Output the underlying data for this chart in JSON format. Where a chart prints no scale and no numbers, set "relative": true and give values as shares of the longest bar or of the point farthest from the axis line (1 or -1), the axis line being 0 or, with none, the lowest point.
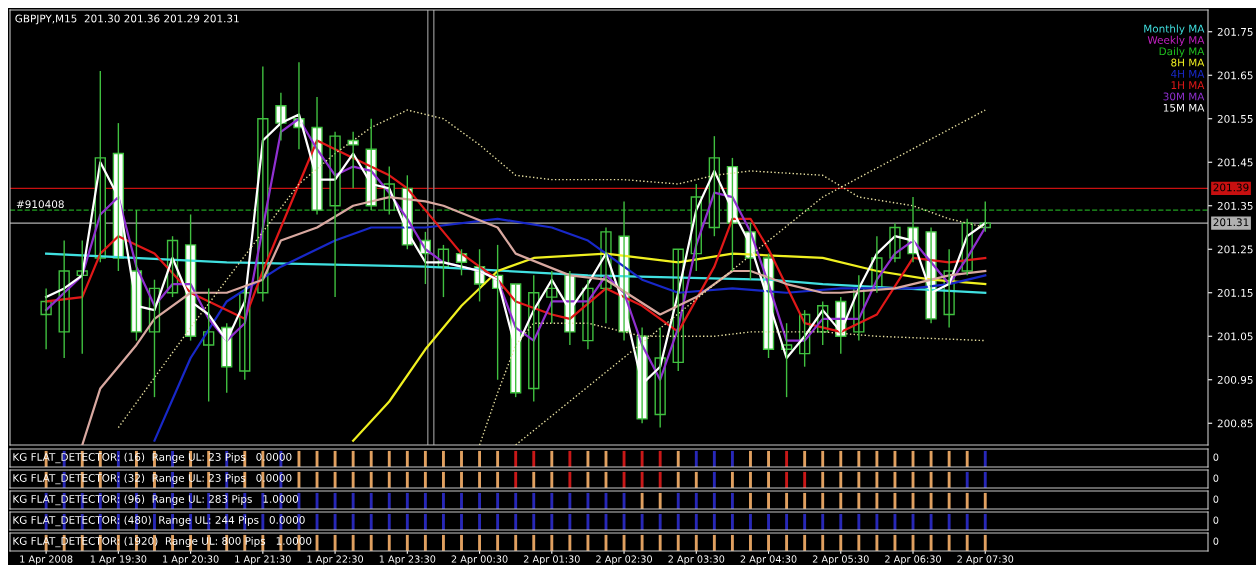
{
  "chart_data": [
    {
      "type": "candlestick",
      "title": "GBPJPY,M15  201.30 201.36 201.29 201.31",
      "tick_labels": "y",
      "legend": "top right",
      "annotations": [
        {
          "text": "#910408",
          "x": "2008-04-01T18:05",
          "y": 201.34
        }
      ],
      "xlim": [
        "2008-04-01T18:00",
        "2008-04-02T10:35"
      ],
      "ylim": [
        200.8,
        201.8
      ],
      "yticks": [
        200.85,
        200.95,
        201.05,
        201.15,
        201.25,
        201.35,
        201.45,
        201.55,
        201.65,
        201.75
      ],
      "x": [
        "2008-04-01T18:30",
        "2008-04-01T18:45",
        "2008-04-01T19:00",
        "2008-04-01T19:15",
        "2008-04-01T19:30",
        "2008-04-01T19:45",
        "2008-04-01T20:00",
        "2008-04-01T20:15",
        "2008-04-01T20:30",
        "2008-04-01T20:45",
        "2008-04-01T21:00",
        "2008-04-01T21:15",
        "2008-04-01T21:30",
        "2008-04-01T21:45",
        "2008-04-01T22:00",
        "2008-04-01T22:15",
        "2008-04-01T22:30",
        "2008-04-01T22:45",
        "2008-04-01T23:00",
        "2008-04-01T23:15",
        "2008-04-01T23:30",
        "2008-04-01T23:45",
        "2008-04-02T00:00",
        "2008-04-02T00:15",
        "2008-04-02T00:30",
        "2008-04-02T00:45",
        "2008-04-02T01:00",
        "2008-04-02T01:15",
        "2008-04-02T01:30",
        "2008-04-02T01:45",
        "2008-04-02T02:00",
        "2008-04-02T02:15",
        "2008-04-02T02:30",
        "2008-04-02T02:45",
        "2008-04-02T03:00",
        "2008-04-02T03:15",
        "2008-04-02T03:30",
        "2008-04-02T03:45",
        "2008-04-02T04:00",
        "2008-04-02T04:15",
        "2008-04-02T04:30",
        "2008-04-02T04:45",
        "2008-04-02T05:00",
        "2008-04-02T05:15",
        "2008-04-02T05:30",
        "2008-04-02T05:45",
        "2008-04-02T06:00",
        "2008-04-02T06:15",
        "2008-04-02T06:30",
        "2008-04-02T06:45",
        "2008-04-02T07:00",
        "2008-04-02T07:15",
        "2008-04-02T07:30"
      ],
      "ohlc": [
        [
          201.1,
          201.16,
          201.02,
          201.13
        ],
        [
          201.06,
          201.27,
          201.0,
          201.2
        ],
        [
          201.19,
          201.27,
          201.01,
          201.2
        ],
        [
          201.23,
          201.66,
          201.22,
          201.46
        ],
        [
          201.47,
          201.54,
          201.2,
          201.23
        ],
        [
          201.2,
          201.34,
          201.04,
          201.06
        ],
        [
          201.06,
          201.18,
          200.91,
          201.16
        ],
        [
          201.15,
          201.28,
          201.14,
          201.27
        ],
        [
          201.26,
          201.33,
          201.04,
          201.05
        ],
        [
          201.03,
          201.16,
          200.9,
          201.06
        ],
        [
          201.07,
          201.08,
          200.92,
          200.98
        ],
        [
          200.97,
          201.16,
          200.95,
          201.15
        ],
        [
          201.15,
          201.67,
          201.13,
          201.55
        ],
        [
          201.58,
          201.61,
          201.5,
          201.54
        ],
        [
          201.55,
          201.68,
          201.48,
          201.53
        ],
        [
          201.53,
          201.6,
          201.33,
          201.34
        ],
        [
          201.35,
          201.52,
          201.14,
          201.51
        ],
        [
          201.5,
          201.52,
          201.39,
          201.49
        ],
        [
          201.48,
          201.55,
          201.34,
          201.35
        ],
        [
          201.34,
          201.44,
          201.33,
          201.4
        ],
        [
          201.39,
          201.42,
          201.25,
          201.26
        ],
        [
          201.27,
          201.29,
          201.17,
          201.24
        ],
        [
          201.21,
          201.26,
          201.14,
          201.25
        ],
        [
          201.24,
          201.25,
          201.19,
          201.22
        ],
        [
          201.21,
          201.25,
          201.13,
          201.17
        ],
        [
          201.19,
          201.26,
          200.95,
          201.16
        ],
        [
          201.17,
          201.17,
          200.91,
          200.92
        ],
        [
          200.93,
          201.19,
          200.9,
          201.15
        ],
        [
          201.14,
          201.2,
          201.08,
          201.16
        ],
        [
          201.19,
          201.2,
          201.03,
          201.06
        ],
        [
          201.04,
          201.18,
          201.02,
          201.16
        ],
        [
          201.16,
          201.3,
          201.08,
          201.29
        ],
        [
          201.28,
          201.36,
          201.04,
          201.06
        ],
        [
          201.05,
          201.07,
          200.85,
          200.86
        ],
        [
          200.87,
          201.07,
          200.84,
          201.0
        ],
        [
          200.99,
          201.25,
          200.97,
          201.25
        ],
        [
          201.24,
          201.4,
          201.2,
          201.37
        ],
        [
          201.3,
          201.51,
          201.28,
          201.46
        ],
        [
          201.44,
          201.46,
          201.2,
          201.31
        ],
        [
          201.29,
          201.31,
          201.18,
          201.23
        ],
        [
          201.23,
          201.24,
          201.0,
          201.02
        ],
        [
          201.02,
          201.08,
          200.91,
          201.03
        ],
        [
          201.01,
          201.11,
          200.98,
          201.1
        ],
        [
          201.06,
          201.13,
          201.03,
          201.12
        ],
        [
          201.13,
          201.14,
          201.01,
          201.05
        ],
        [
          201.06,
          201.19,
          201.04,
          201.16
        ],
        [
          201.16,
          201.28,
          201.15,
          201.23
        ],
        [
          201.23,
          201.31,
          201.22,
          201.3
        ],
        [
          201.3,
          201.37,
          201.22,
          201.24
        ],
        [
          201.29,
          201.3,
          201.08,
          201.09
        ],
        [
          201.1,
          201.25,
          201.07,
          201.2
        ],
        [
          201.2,
          201.32,
          201.19,
          201.31
        ],
        [
          201.3,
          201.36,
          201.29,
          201.31
        ]
      ],
      "color": "#40c040",
      "colors": [
        "#000000",
        "#000000",
        "#000000",
        "#000000",
        "#ffffff",
        "#ffffff",
        "#000000",
        "#000000",
        "#ffffff",
        "#000000",
        "#ffffff",
        "#000000",
        "#000000",
        "#ffffff",
        "#ffffff",
        "#ffffff",
        "#000000",
        "#ffffff",
        "#ffffff",
        "#000000",
        "#ffffff",
        "#ffffff",
        "#000000",
        "#ffffff",
        "#ffffff",
        "#ffffff",
        "#ffffff",
        "#000000",
        "#000000",
        "#ffffff",
        "#000000",
        "#000000",
        "#ffffff",
        "#ffffff",
        "#000000",
        "#000000",
        "#000000",
        "#000000",
        "#ffffff",
        "#ffffff",
        "#ffffff",
        "#000000",
        "#000000",
        "#000000",
        "#ffffff",
        "#000000",
        "#000000",
        "#000000",
        "#ffffff",
        "#ffffff",
        "#000000",
        "#000000",
        "#000000"
      ],
      "series": [
        {
          "type": "line",
          "name": "Monthly MA",
          "color": "#40e0e0",
          "x": [
            "2008-04-01T18:30",
            "2008-04-01T21:00",
            "2008-04-01T23:45",
            "2008-04-02T02:00",
            "2008-04-02T04:30",
            "2008-04-02T05:15",
            "2008-04-02T07:30"
          ],
          "values": [
            201.24,
            201.22,
            201.21,
            201.19,
            201.18,
            201.17,
            201.15
          ]
        },
        {
          "type": "line",
          "name": "Weekly MA",
          "color": "#c020c0",
          "values": [
            null,
            null,
            null,
            null,
            null,
            null,
            null,
            null,
            null,
            null,
            null,
            null,
            null,
            null,
            null,
            null,
            null,
            null,
            null,
            null,
            null,
            null,
            null,
            null,
            null,
            null,
            null,
            null,
            null,
            null,
            null,
            null,
            null,
            null,
            null,
            null,
            null,
            null,
            null,
            null,
            null,
            null,
            null,
            null,
            null,
            null,
            null,
            null,
            null,
            null,
            null,
            null,
            null
          ]
        },
        {
          "type": "line",
          "name": "Daily MA",
          "color": "#20c020",
          "values": [
            null,
            null,
            null,
            null,
            null,
            null,
            null,
            null,
            null,
            null,
            null,
            null,
            null,
            null,
            null,
            null,
            null,
            null,
            null,
            null,
            null,
            null,
            null,
            null,
            null,
            null,
            null,
            null,
            null,
            null,
            null,
            null,
            null,
            null,
            null,
            null,
            null,
            null,
            null,
            null,
            null,
            null,
            null,
            null,
            null,
            null,
            null,
            null,
            null,
            null,
            null,
            null,
            null
          ]
        },
        {
          "type": "line",
          "name": "8H MA",
          "color": "#f0f020",
          "x": [
            "2008-04-01T22:45",
            "2008-04-01T23:15",
            "2008-04-01T23:45",
            "2008-04-02T00:15",
            "2008-04-02T00:45",
            "2008-04-02T01:15",
            "2008-04-02T02:15",
            "2008-04-02T03:15",
            "2008-04-02T04:00",
            "2008-04-02T05:15",
            "2008-04-02T06:00",
            "2008-04-02T06:45",
            "2008-04-02T07:30"
          ],
          "values": [
            200.81,
            200.9,
            201.02,
            201.12,
            201.2,
            201.23,
            201.24,
            201.22,
            201.24,
            201.23,
            201.2,
            201.18,
            201.17
          ]
        },
        {
          "type": "line",
          "name": "4H MA",
          "color": "#1828c8",
          "x": [
            "2008-04-01T20:00",
            "2008-04-01T20:30",
            "2008-04-01T21:00",
            "2008-04-01T21:45",
            "2008-04-01T22:30",
            "2008-04-01T23:00",
            "2008-04-01T23:45",
            "2008-04-02T00:45",
            "2008-04-02T01:30",
            "2008-04-02T02:00",
            "2008-04-02T02:45",
            "2008-04-02T03:15",
            "2008-04-02T04:00",
            "2008-04-02T04:45",
            "2008-04-02T05:30",
            "2008-04-02T06:30",
            "2008-04-02T07:00",
            "2008-04-02T07:30"
          ],
          "values": [
            200.81,
            201.0,
            201.13,
            201.21,
            201.27,
            201.3,
            201.3,
            201.32,
            201.3,
            201.27,
            201.18,
            201.15,
            201.16,
            201.15,
            201.16,
            201.16,
            201.17,
            201.19
          ]
        },
        {
          "type": "line",
          "name": "1H MA",
          "color": "#e01818",
          "x": [
            "2008-04-01T18:30",
            "2008-04-01T19:00",
            "2008-04-01T19:15",
            "2008-04-01T19:30",
            "2008-04-01T19:45",
            "2008-04-01T20:00",
            "2008-04-01T20:30",
            "2008-04-01T21:15",
            "2008-04-01T21:30",
            "2008-04-01T22:00",
            "2008-04-01T22:15",
            "2008-04-01T22:45",
            "2008-04-01T23:15",
            "2008-04-01T23:30",
            "2008-04-01T23:45",
            "2008-04-02T00:15",
            "2008-04-02T00:45",
            "2008-04-02T01:00",
            "2008-04-02T01:30",
            "2008-04-02T01:45",
            "2008-04-02T02:15",
            "2008-04-02T02:45",
            "2008-04-02T03:15",
            "2008-04-02T03:45",
            "2008-04-02T04:00",
            "2008-04-02T04:15",
            "2008-04-02T04:30",
            "2008-04-02T05:00",
            "2008-04-02T05:30",
            "2008-04-02T06:00",
            "2008-04-02T06:30",
            "2008-04-02T07:00",
            "2008-04-02T07:30"
          ],
          "values": [
            201.13,
            201.14,
            201.24,
            201.28,
            201.26,
            201.24,
            201.15,
            201.09,
            201.2,
            201.4,
            201.5,
            201.46,
            201.42,
            201.39,
            201.34,
            201.24,
            201.18,
            201.13,
            201.1,
            201.09,
            201.16,
            201.12,
            201.06,
            201.21,
            201.32,
            201.32,
            201.25,
            201.08,
            201.06,
            201.1,
            201.23,
            201.22,
            201.23
          ]
        },
        {
          "type": "line",
          "name": "30M MA",
          "color": "#9030d0",
          "values": [
            201.11,
            201.15,
            201.19,
            201.33,
            201.37,
            201.21,
            201.12,
            201.17,
            201.17,
            201.09,
            201.04,
            201.08,
            201.3,
            201.52,
            201.55,
            201.48,
            201.42,
            201.44,
            201.43,
            201.38,
            201.32,
            201.25,
            201.22,
            201.21,
            201.2,
            201.18,
            201.07,
            201.04,
            201.13,
            201.13,
            201.13,
            201.19,
            201.15,
            201.03,
            200.95,
            201.07,
            201.26,
            201.38,
            201.37,
            201.29,
            201.17,
            201.04,
            201.04,
            201.09,
            201.09,
            201.09,
            201.18,
            201.24,
            201.27,
            201.22,
            201.17,
            201.23,
            201.3
          ]
        },
        {
          "type": "line",
          "name": "15M MA",
          "color": "#ffffff",
          "values": [
            201.14,
            201.16,
            201.19,
            201.45,
            201.37,
            201.12,
            201.11,
            201.23,
            201.13,
            201.1,
            201.04,
            201.13,
            201.5,
            201.54,
            201.56,
            201.41,
            201.41,
            201.47,
            201.4,
            201.39,
            201.29,
            201.22,
            201.22,
            201.21,
            201.2,
            201.18,
            201.02,
            201.11,
            201.18,
            201.11,
            201.17,
            201.24,
            201.12,
            200.94,
            200.98,
            201.15,
            201.34,
            201.43,
            201.34,
            201.26,
            201.13,
            201.0,
            201.05,
            201.11,
            201.06,
            201.16,
            201.24,
            201.28,
            201.27,
            201.15,
            201.17,
            201.28,
            201.31
          ]
        },
        {
          "type": "line",
          "color": "#d8a8a0",
          "x": [
            "2008-04-01T19:00",
            "2008-04-01T19:15",
            "2008-04-01T19:45",
            "2008-04-01T20:00",
            "2008-04-01T20:30",
            "2008-04-01T21:00",
            "2008-04-01T21:30",
            "2008-04-01T21:45",
            "2008-04-01T22:15",
            "2008-04-01T22:45",
            "2008-04-01T23:15",
            "2008-04-01T23:45",
            "2008-04-02T00:00",
            "2008-04-02T00:45",
            "2008-04-02T01:00",
            "2008-04-02T01:45",
            "2008-04-02T02:15",
            "2008-04-02T03:00",
            "2008-04-02T03:30",
            "2008-04-02T04:00",
            "2008-04-02T04:15",
            "2008-04-02T04:45",
            "2008-04-02T05:15",
            "2008-04-02T05:30",
            "2008-04-02T06:15",
            "2008-04-02T07:00",
            "2008-04-02T07:30"
          ],
          "values": [
            200.8,
            200.93,
            201.03,
            201.09,
            201.15,
            201.15,
            201.18,
            201.27,
            201.3,
            201.35,
            201.37,
            201.36,
            201.35,
            201.3,
            201.24,
            201.19,
            201.18,
            201.1,
            201.14,
            201.2,
            201.2,
            201.17,
            201.15,
            201.15,
            201.16,
            201.19,
            201.2
          ]
        },
        {
          "type": "line",
          "color": "#e8e0a0",
          "line_style": "dotted",
          "x": [
            "2008-04-01T19:30",
            "2008-04-01T20:30",
            "2008-04-01T21:30",
            "2008-04-01T22:00",
            "2008-04-01T22:30",
            "2008-04-01T23:00",
            "2008-04-01T23:30",
            "2008-04-02T00:00",
            "2008-04-02T00:30",
            "2008-04-02T01:00",
            "2008-04-02T01:30",
            "2008-04-02T02:30",
            "2008-04-02T03:15",
            "2008-04-02T03:45",
            "2008-04-02T04:15",
            "2008-04-02T05:15",
            "2008-04-02T05:45",
            "2008-04-02T06:30",
            "2008-04-02T07:00",
            "2008-04-02T07:30"
          ],
          "values": [
            200.84,
            201.07,
            201.29,
            201.4,
            201.47,
            201.53,
            201.57,
            201.55,
            201.49,
            201.42,
            201.41,
            201.41,
            201.4,
            201.42,
            201.43,
            201.42,
            201.37,
            201.35,
            201.32,
            201.3
          ]
        },
        {
          "type": "line",
          "color": "#e8e0a0",
          "line_style": "dotted",
          "x": [
            "2008-04-02T00:30",
            "2008-04-02T00:45",
            "2008-04-02T01:00",
            "2008-04-02T01:15",
            "2008-04-02T02:00",
            "2008-04-02T02:45",
            "2008-04-02T03:45",
            "2008-04-02T04:15",
            "2008-04-02T05:15",
            "2008-04-02T06:00",
            "2008-04-02T07:30"
          ],
          "values": [
            200.8,
            200.92,
            201.03,
            201.08,
            201.08,
            201.05,
            201.05,
            201.06,
            201.06,
            201.05,
            201.04
          ]
        },
        {
          "type": "line",
          "color": "#e8e0a0",
          "line_style": "dotted",
          "x": [
            "2008-04-02T01:00",
            "2008-04-02T05:15",
            "2008-04-02T07:30"
          ],
          "values": [
            200.8,
            201.37,
            201.57
          ]
        }
      ],
      "ref_lines": [
        {
          "axis": "y",
          "value": 201.39,
          "label": "201.39",
          "color": "#c81010"
        },
        {
          "axis": "y",
          "value": 201.31,
          "label": "201.31",
          "color": "#b0b0b0"
        },
        {
          "axis": "y",
          "value": 201.34,
          "color": "#20a020",
          "line_style": "dashed"
        },
        {
          "axis": "x",
          "value": "2008-04-01T23:47",
          "color": "#808080"
        },
        {
          "axis": "x",
          "value": "2008-04-01T23:52",
          "color": "#808080"
        }
      ]
    },
    {
      "type": "bar",
      "relative": true,
      "tick_labels": false,
      "title": "KG FLAT_DETECTOR: (16)  Range UL: 23 Pips   0.0000",
      "annotations": [
        "0"
      ],
      "xlim": [
        "2008-04-01T18:00",
        "2008-04-02T10:35"
      ],
      "x": [
        "2008-04-01T18:30",
        "2008-04-01T18:45",
        "2008-04-01T19:00",
        "2008-04-01T19:15",
        "2008-04-01T19:30",
        "2008-04-01T19:45",
        "2008-04-01T20:00",
        "2008-04-01T20:15",
        "2008-04-01T20:30",
        "2008-04-01T20:45",
        "2008-04-01T21:00",
        "2008-04-01T21:15",
        "2008-04-01T21:30",
        "2008-04-01T21:45",
        "2008-04-01T22:00",
        "2008-04-01T22:15",
        "2008-04-01T22:30",
        "2008-04-01T22:45",
        "2008-04-01T23:00",
        "2008-04-01T23:15",
        "2008-04-01T23:30",
        "2008-04-01T23:45",
        "2008-04-02T00:00",
        "2008-04-02T00:15",
        "2008-04-02T00:30",
        "2008-04-02T00:45",
        "2008-04-02T01:00",
        "2008-04-02T01:15",
        "2008-04-02T01:30",
        "2008-04-02T01:45",
        "2008-04-02T02:00",
        "2008-04-02T02:15",
        "2008-04-02T02:30",
        "2008-04-02T02:45",
        "2008-04-02T03:00",
        "2008-04-02T03:15",
        "2008-04-02T03:30",
        "2008-04-02T03:45",
        "2008-04-02T04:00",
        "2008-04-02T04:15",
        "2008-04-02T04:30",
        "2008-04-02T04:45",
        "2008-04-02T05:00",
        "2008-04-02T05:15",
        "2008-04-02T05:30",
        "2008-04-02T05:45",
        "2008-04-02T06:00",
        "2008-04-02T06:15",
        "2008-04-02T06:30",
        "2008-04-02T06:45",
        "2008-04-02T07:00",
        "2008-04-02T07:15",
        "2008-04-02T07:30"
      ],
      "values": [
        1,
        1,
        1,
        1,
        1,
        1,
        1,
        1,
        1,
        1,
        1,
        1,
        1,
        1,
        1,
        1,
        1,
        1,
        1,
        1,
        1,
        1,
        1,
        1,
        1,
        1,
        1,
        1,
        1,
        1,
        1,
        1,
        1,
        1,
        1,
        1,
        1,
        1,
        1,
        1,
        1,
        1,
        1,
        1,
        1,
        1,
        1,
        1,
        1,
        1,
        1,
        1,
        1
      ],
      "colors": [
        "#e0a060",
        "#2828b8",
        "#e0a060",
        "#e0a060",
        "#2828b8",
        "#e0a060",
        "#e0a060",
        "#2828b8",
        "#e0a060",
        "#e0a060",
        "#2828b8",
        "#e0a060",
        "#e0a060",
        "#2828b8",
        "#e0a060",
        "#e0a060",
        "#e0a060",
        "#e0a060",
        "#e0a060",
        "#e0a060",
        "#e0a060",
        "#e0a060",
        "#e0a060",
        "#e0a060",
        "#e0a060",
        "#e0a060",
        "#c81818",
        "#c81818",
        "#e0a060",
        "#c81818",
        "#e0a060",
        "#e0a060",
        "#c81818",
        "#c81818",
        "#c81818",
        "#e0a060",
        "#2828b8",
        "#2828b8",
        "#2828b8",
        "#e0a060",
        "#e0a060",
        "#c81818",
        "#e0a060",
        "#e0a060",
        "#e0a060",
        "#e0a060",
        "#e0a060",
        "#e0a060",
        "#e0a060",
        "#e0a060",
        "#e0a060",
        "#e0a060",
        "#2828b8"
      ]
    },
    {
      "type": "bar",
      "relative": true,
      "tick_labels": false,
      "title": "KG FLAT_DETECTOR: (32)  Range UL: 23 Pips   0.0000",
      "annotations": [
        "0"
      ],
      "xlim": [
        "2008-04-01T18:00",
        "2008-04-02T10:35"
      ],
      "x": [
        "2008-04-01T18:30",
        "2008-04-01T18:45",
        "2008-04-01T19:00",
        "2008-04-01T19:15",
        "2008-04-01T19:30",
        "2008-04-01T19:45",
        "2008-04-01T20:00",
        "2008-04-01T20:15",
        "2008-04-01T20:30",
        "2008-04-01T20:45",
        "2008-04-01T21:00",
        "2008-04-01T21:15",
        "2008-04-01T21:30",
        "2008-04-01T21:45",
        "2008-04-01T22:00",
        "2008-04-01T22:15",
        "2008-04-01T22:30",
        "2008-04-01T22:45",
        "2008-04-01T23:00",
        "2008-04-01T23:15",
        "2008-04-01T23:30",
        "2008-04-01T23:45",
        "2008-04-02T00:00",
        "2008-04-02T00:15",
        "2008-04-02T00:30",
        "2008-04-02T00:45",
        "2008-04-02T01:00",
        "2008-04-02T01:15",
        "2008-04-02T01:30",
        "2008-04-02T01:45",
        "2008-04-02T02:00",
        "2008-04-02T02:15",
        "2008-04-02T02:30",
        "2008-04-02T02:45",
        "2008-04-02T03:00",
        "2008-04-02T03:15",
        "2008-04-02T03:30",
        "2008-04-02T03:45",
        "2008-04-02T04:00",
        "2008-04-02T04:15",
        "2008-04-02T04:30",
        "2008-04-02T04:45",
        "2008-04-02T05:00",
        "2008-04-02T05:15",
        "2008-04-02T05:30",
        "2008-04-02T05:45",
        "2008-04-02T06:00",
        "2008-04-02T06:15",
        "2008-04-02T06:30",
        "2008-04-02T06:45",
        "2008-04-02T07:00",
        "2008-04-02T07:15",
        "2008-04-02T07:30"
      ],
      "values": [
        1,
        1,
        1,
        1,
        1,
        1,
        1,
        1,
        1,
        1,
        1,
        1,
        1,
        1,
        1,
        1,
        1,
        1,
        1,
        1,
        1,
        1,
        1,
        1,
        1,
        1,
        1,
        1,
        1,
        1,
        1,
        1,
        1,
        1,
        1,
        1,
        1,
        1,
        1,
        1,
        1,
        1,
        1,
        1,
        1,
        1,
        1,
        1,
        1,
        1,
        1,
        1,
        1
      ],
      "colors": [
        "#e0a060",
        "#2828b8",
        "#e0a060",
        "#e0a060",
        "#2828b8",
        "#e0a060",
        "#e0a060",
        "#2828b8",
        "#e0a060",
        "#e0a060",
        "#2828b8",
        "#e0a060",
        "#e0a060",
        "#2828b8",
        "#e0a060",
        "#e0a060",
        "#e0a060",
        "#e0a060",
        "#e0a060",
        "#e0a060",
        "#e0a060",
        "#e0a060",
        "#e0a060",
        "#e0a060",
        "#e0a060",
        "#e0a060",
        "#c81818",
        "#e0a060",
        "#e0a060",
        "#c81818",
        "#e0a060",
        "#e0a060",
        "#c81818",
        "#c81818",
        "#c81818",
        "#e0a060",
        "#e0a060",
        "#2828b8",
        "#e0a060",
        "#e0a060",
        "#e0a060",
        "#c81818",
        "#c81818",
        "#e0a060",
        "#e0a060",
        "#e0a060",
        "#e0a060",
        "#e0a060",
        "#e0a060",
        "#e0a060",
        "#e0a060",
        "#2828b8",
        "#2828b8"
      ]
    },
    {
      "type": "bar",
      "relative": true,
      "tick_labels": false,
      "title": "KG FLAT_DETECTOR: (96)  Range UL: 283 Pips   1.0000",
      "annotations": [
        "0"
      ],
      "xlim": [
        "2008-04-01T18:00",
        "2008-04-02T10:35"
      ],
      "x": [
        "2008-04-01T18:30",
        "2008-04-01T18:45",
        "2008-04-01T19:00",
        "2008-04-01T19:15",
        "2008-04-01T19:30",
        "2008-04-01T19:45",
        "2008-04-01T20:00",
        "2008-04-01T20:15",
        "2008-04-01T20:30",
        "2008-04-01T20:45",
        "2008-04-01T21:00",
        "2008-04-01T21:15",
        "2008-04-01T21:30",
        "2008-04-01T21:45",
        "2008-04-01T22:00",
        "2008-04-01T22:15",
        "2008-04-01T22:30",
        "2008-04-01T22:45",
        "2008-04-01T23:00",
        "2008-04-01T23:15",
        "2008-04-01T23:30",
        "2008-04-01T23:45",
        "2008-04-02T00:00",
        "2008-04-02T00:15",
        "2008-04-02T00:30",
        "2008-04-02T00:45",
        "2008-04-02T01:00",
        "2008-04-02T01:15",
        "2008-04-02T01:30",
        "2008-04-02T01:45",
        "2008-04-02T02:00",
        "2008-04-02T02:15",
        "2008-04-02T02:30",
        "2008-04-02T02:45",
        "2008-04-02T03:00",
        "2008-04-02T03:15",
        "2008-04-02T03:30",
        "2008-04-02T03:45",
        "2008-04-02T04:00",
        "2008-04-02T04:15",
        "2008-04-02T04:30",
        "2008-04-02T04:45",
        "2008-04-02T05:00",
        "2008-04-02T05:15",
        "2008-04-02T05:30",
        "2008-04-02T05:45",
        "2008-04-02T06:00",
        "2008-04-02T06:15",
        "2008-04-02T06:30",
        "2008-04-02T06:45",
        "2008-04-02T07:00",
        "2008-04-02T07:15",
        "2008-04-02T07:30"
      ],
      "values": [
        1,
        1,
        1,
        1,
        1,
        1,
        1,
        1,
        1,
        1,
        1,
        1,
        1,
        1,
        1,
        1,
        1,
        1,
        1,
        1,
        1,
        1,
        1,
        1,
        1,
        1,
        1,
        1,
        1,
        1,
        1,
        1,
        1,
        1,
        1,
        1,
        1,
        1,
        1,
        1,
        1,
        1,
        1,
        1,
        1,
        1,
        1,
        1,
        1,
        1,
        1,
        1,
        1
      ],
      "colors": [
        "#2828b8",
        "#2828b8",
        "#2828b8",
        "#2828b8",
        "#2828b8",
        "#2828b8",
        "#2828b8",
        "#2828b8",
        "#2828b8",
        "#2828b8",
        "#2828b8",
        "#2828b8",
        "#2828b8",
        "#2828b8",
        "#2828b8",
        "#2828b8",
        "#2828b8",
        "#2828b8",
        "#2828b8",
        "#2828b8",
        "#2828b8",
        "#2828b8",
        "#2828b8",
        "#2828b8",
        "#2828b8",
        "#2828b8",
        "#2828b8",
        "#2828b8",
        "#2828b8",
        "#2828b8",
        "#2828b8",
        "#2828b8",
        "#2828b8",
        "#e0a060",
        "#e0a060",
        "#2828b8",
        "#2828b8",
        "#2828b8",
        "#2828b8",
        "#e0a060",
        "#e0a060",
        "#e0a060",
        "#e0a060",
        "#e0a060",
        "#e0a060",
        "#e0a060",
        "#e0a060",
        "#e0a060",
        "#e0a060",
        "#e0a060",
        "#e0a060",
        "#e0a060",
        "#e0a060"
      ]
    },
    {
      "type": "bar",
      "relative": true,
      "tick_labels": false,
      "title": "KG FLAT_DETECTOR: (480)  Range UL: 244 Pips   0.0000",
      "annotations": [
        "0"
      ],
      "xlim": [
        "2008-04-01T18:00",
        "2008-04-02T10:35"
      ],
      "x": [
        "2008-04-01T18:30",
        "2008-04-01T18:45",
        "2008-04-01T19:00",
        "2008-04-01T19:15",
        "2008-04-01T19:30",
        "2008-04-01T19:45",
        "2008-04-01T20:00",
        "2008-04-01T20:15",
        "2008-04-01T20:30",
        "2008-04-01T20:45",
        "2008-04-01T21:00",
        "2008-04-01T21:15",
        "2008-04-01T21:30",
        "2008-04-01T21:45",
        "2008-04-01T22:00",
        "2008-04-01T22:15",
        "2008-04-01T22:30",
        "2008-04-01T22:45",
        "2008-04-01T23:00",
        "2008-04-01T23:15",
        "2008-04-01T23:30",
        "2008-04-01T23:45",
        "2008-04-02T00:00",
        "2008-04-02T00:15",
        "2008-04-02T00:30",
        "2008-04-02T00:45",
        "2008-04-02T01:00",
        "2008-04-02T01:15",
        "2008-04-02T01:30",
        "2008-04-02T01:45",
        "2008-04-02T02:00",
        "2008-04-02T02:15",
        "2008-04-02T02:30",
        "2008-04-02T02:45",
        "2008-04-02T03:00",
        "2008-04-02T03:15",
        "2008-04-02T03:30",
        "2008-04-02T03:45",
        "2008-04-02T04:00",
        "2008-04-02T04:15",
        "2008-04-02T04:30",
        "2008-04-02T04:45",
        "2008-04-02T05:00",
        "2008-04-02T05:15",
        "2008-04-02T05:30",
        "2008-04-02T05:45",
        "2008-04-02T06:00",
        "2008-04-02T06:15",
        "2008-04-02T06:30",
        "2008-04-02T06:45",
        "2008-04-02T07:00",
        "2008-04-02T07:15",
        "2008-04-02T07:30"
      ],
      "values": [
        1,
        1,
        1,
        1,
        1,
        1,
        1,
        1,
        1,
        1,
        1,
        1,
        1,
        1,
        1,
        1,
        1,
        1,
        1,
        1,
        1,
        1,
        1,
        1,
        1,
        1,
        1,
        1,
        1,
        1,
        1,
        1,
        1,
        1,
        1,
        1,
        1,
        1,
        1,
        1,
        1,
        1,
        1,
        1,
        1,
        1,
        1,
        1,
        1,
        1,
        1,
        1,
        1
      ],
      "colors": [
        "#2828b8",
        "#2828b8",
        "#2828b8",
        "#2828b8",
        "#2828b8",
        "#2828b8",
        "#2828b8",
        "#2828b8",
        "#2828b8",
        "#2828b8",
        "#2828b8",
        "#2828b8",
        "#2828b8",
        "#2828b8",
        "#2828b8",
        "#2828b8",
        "#2828b8",
        "#2828b8",
        "#2828b8",
        "#2828b8",
        "#2828b8",
        "#2828b8",
        "#2828b8",
        "#2828b8",
        "#2828b8",
        "#2828b8",
        "#2828b8",
        "#2828b8",
        "#2828b8",
        "#2828b8",
        "#2828b8",
        "#2828b8",
        "#2828b8",
        "#2828b8",
        "#2828b8",
        "#2828b8",
        "#2828b8",
        "#2828b8",
        "#2828b8",
        "#2828b8",
        "#2828b8",
        "#2828b8",
        "#2828b8",
        "#2828b8",
        "#2828b8",
        "#2828b8",
        "#2828b8",
        "#2828b8",
        "#2828b8",
        "#2828b8",
        "#2828b8",
        "#2828b8",
        "#2828b8"
      ]
    },
    {
      "type": "bar",
      "relative": true,
      "tick_labels": "x",
      "title": "KG FLAT_DETECTOR: (1920)  Range UL: 800 Pips   1.0000",
      "annotations": [
        "0"
      ],
      "xlim": [
        "2008-04-01T18:00",
        "2008-04-02T10:35"
      ],
      "xticks": [
        {
          "value": "2008-04-01T18:30",
          "label": "1 Apr 2008"
        },
        {
          "value": "2008-04-01T19:30",
          "label": "1 Apr 19:30"
        },
        {
          "value": "2008-04-01T20:30",
          "label": "1 Apr 20:30"
        },
        {
          "value": "2008-04-01T21:30",
          "label": "1 Apr 21:30"
        },
        {
          "value": "2008-04-01T22:30",
          "label": "1 Apr 22:30"
        },
        {
          "value": "2008-04-01T23:30",
          "label": "1 Apr 23:30"
        },
        {
          "value": "2008-04-02T00:30",
          "label": "2 Apr 00:30"
        },
        {
          "value": "2008-04-02T01:30",
          "label": "2 Apr 01:30"
        },
        {
          "value": "2008-04-02T02:30",
          "label": "2 Apr 02:30"
        },
        {
          "value": "2008-04-02T03:30",
          "label": "2 Apr 03:30"
        },
        {
          "value": "2008-04-02T04:30",
          "label": "2 Apr 04:30"
        },
        {
          "value": "2008-04-02T05:30",
          "label": "2 Apr 05:30"
        },
        {
          "value": "2008-04-02T06:30",
          "label": "2 Apr 06:30"
        },
        {
          "value": "2008-04-02T07:30",
          "label": "2 Apr 07:30"
        }
      ],
      "x": [
        "2008-04-01T18:30",
        "2008-04-01T18:45",
        "2008-04-01T19:00",
        "2008-04-01T19:15",
        "2008-04-01T19:30",
        "2008-04-01T19:45",
        "2008-04-01T20:00",
        "2008-04-01T20:15",
        "2008-04-01T20:30",
        "2008-04-01T20:45",
        "2008-04-01T21:00",
        "2008-04-01T21:15",
        "2008-04-01T21:30",
        "2008-04-01T21:45",
        "2008-04-01T22:00",
        "2008-04-01T22:15",
        "2008-04-01T22:30",
        "2008-04-01T22:45",
        "2008-04-01T23:00",
        "2008-04-01T23:15",
        "2008-04-01T23:30",
        "2008-04-01T23:45",
        "2008-04-02T00:00",
        "2008-04-02T00:15",
        "2008-04-02T00:30",
        "2008-04-02T00:45",
        "2008-04-02T01:00",
        "2008-04-02T01:15",
        "2008-04-02T01:30",
        "2008-04-02T01:45",
        "2008-04-02T02:00",
        "2008-04-02T02:15",
        "2008-04-02T02:30",
        "2008-04-02T02:45",
        "2008-04-02T03:00",
        "2008-04-02T03:15",
        "2008-04-02T03:30",
        "2008-04-02T03:45",
        "2008-04-02T04:00",
        "2008-04-02T04:15",
        "2008-04-02T04:30",
        "2008-04-02T04:45",
        "2008-04-02T05:00",
        "2008-04-02T05:15",
        "2008-04-02T05:30",
        "2008-04-02T05:45",
        "2008-04-02T06:00",
        "2008-04-02T06:15",
        "2008-04-02T06:30",
        "2008-04-02T06:45",
        "2008-04-02T07:00",
        "2008-04-02T07:15",
        "2008-04-02T07:30"
      ],
      "values": [
        1,
        1,
        1,
        1,
        1,
        1,
        1,
        1,
        1,
        1,
        1,
        1,
        1,
        1,
        1,
        1,
        1,
        1,
        1,
        1,
        1,
        1,
        1,
        1,
        1,
        1,
        1,
        1,
        1,
        1,
        1,
        1,
        1,
        1,
        1,
        1,
        1,
        1,
        1,
        1,
        1,
        1,
        1,
        1,
        1,
        1,
        1,
        1,
        1,
        1,
        1,
        1,
        1
      ],
      "colors": [
        "#e0a060",
        "#e0a060",
        "#e0a060",
        "#e0a060",
        "#e0a060",
        "#e0a060",
        "#e0a060",
        "#e0a060",
        "#e0a060",
        "#e0a060",
        "#e0a060",
        "#e0a060",
        "#e0a060",
        "#e0a060",
        "#e0a060",
        "#e0a060",
        "#e0a060",
        "#e0a060",
        "#e0a060",
        "#e0a060",
        "#e0a060",
        "#e0a060",
        "#e0a060",
        "#e0a060",
        "#e0a060",
        "#e0a060",
        "#e0a060",
        "#e0a060",
        "#e0a060",
        "#e0a060",
        "#e0a060",
        "#e0a060",
        "#e0a060",
        "#e0a060",
        "#e0a060",
        "#e0a060",
        "#e0a060",
        "#e0a060",
        "#e0a060",
        "#e0a060",
        "#e0a060",
        "#e0a060",
        "#e0a060",
        "#e0a060",
        "#e0a060",
        "#e0a060",
        "#e0a060",
        "#e0a060",
        "#e0a060",
        "#e0a060",
        "#e0a060",
        "#e0a060",
        "#e0a060"
      ]
    }
  ]
}
